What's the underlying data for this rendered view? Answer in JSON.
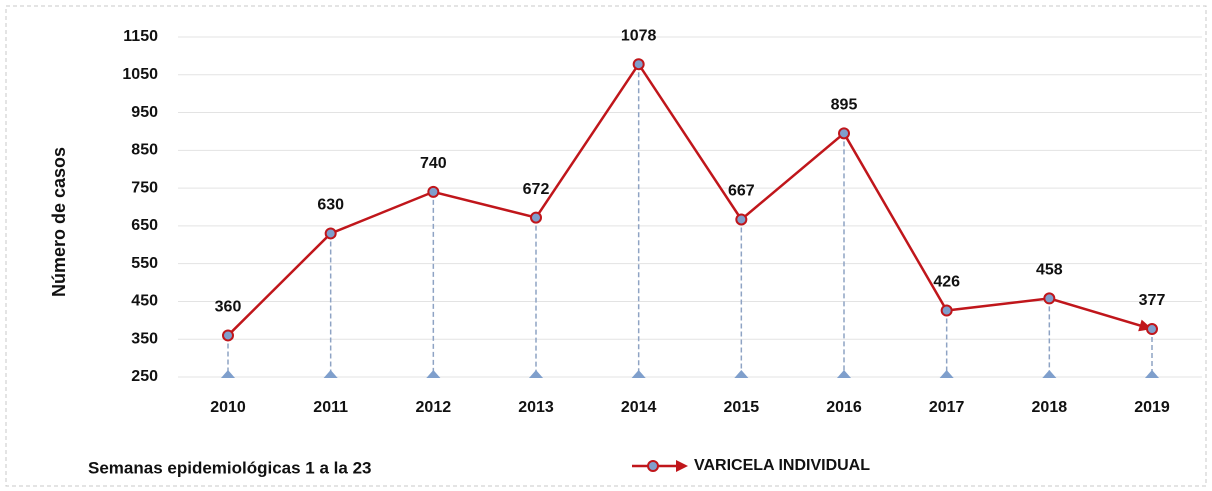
{
  "chart_data": {
    "type": "line",
    "y_label": "Número de casos",
    "annotation": "Semanas epidemiológicas 1 a la 23",
    "categories": [
      "2010",
      "2011",
      "2012",
      "2013",
      "2014",
      "2015",
      "2016",
      "2017",
      "2018",
      "2019"
    ],
    "series": [
      {
        "name": "VARICELA INDIVIDUAL",
        "color": "#c0161b",
        "marker_color": "#7f9fcc",
        "values": [
          360,
          630,
          740,
          672,
          1078,
          667,
          895,
          426,
          458,
          377
        ]
      }
    ],
    "ylim": [
      250,
      1150
    ],
    "yticks": [
      250,
      350,
      450,
      550,
      650,
      750,
      850,
      950,
      1050,
      1150
    ],
    "grid": true,
    "legend": "bottom"
  }
}
